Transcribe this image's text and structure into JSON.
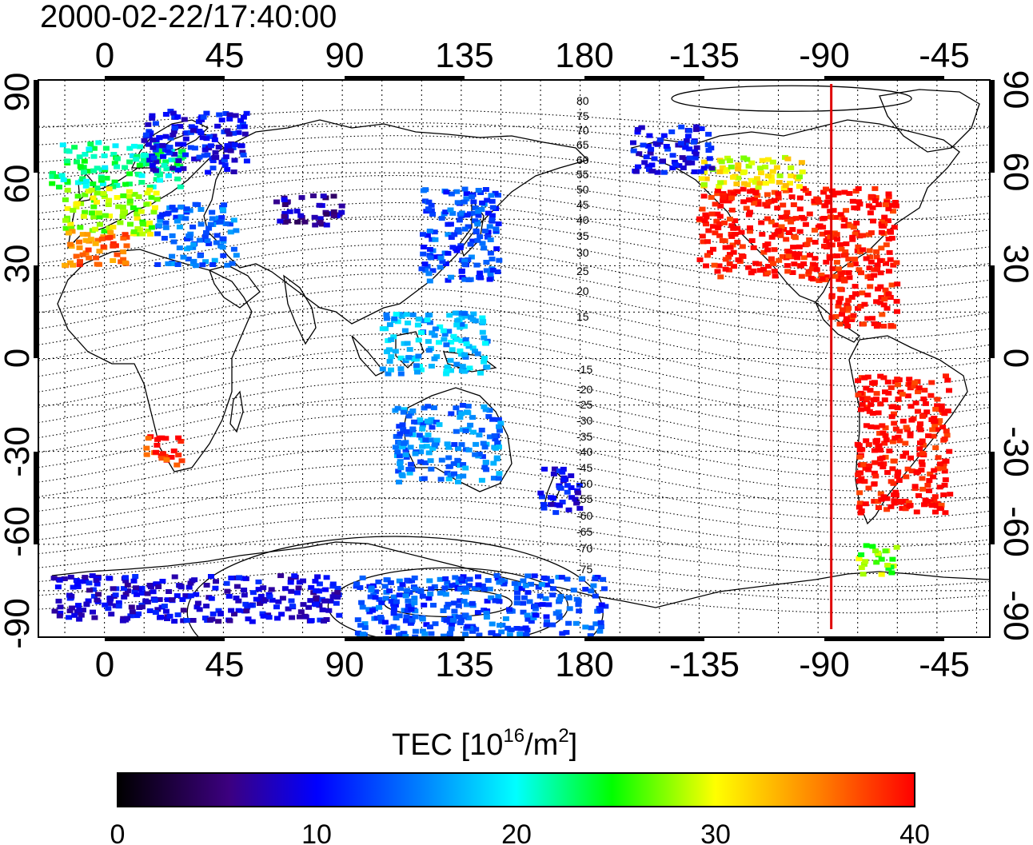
{
  "title": "2000-02-22/17:40:00",
  "top_lon_ticks": [
    "0",
    "45",
    "90",
    "135",
    "180",
    "-135",
    "-90",
    "-45"
  ],
  "bottom_lon_ticks": [
    "0",
    "45",
    "90",
    "135",
    "180",
    "-135",
    "-90",
    "-45"
  ],
  "left_lat_ticks": [
    "90",
    "60",
    "30",
    "0",
    "-30",
    "-60",
    "-90"
  ],
  "right_lat_ticks": [
    "90",
    "60",
    "30",
    "0",
    "-30",
    "-60",
    "-90"
  ],
  "contour_labels": [
    "80",
    "75",
    "70",
    "65",
    "60",
    "55",
    "50",
    "45",
    "40",
    "35",
    "30",
    "25",
    "20",
    "15",
    "-15",
    "-20",
    "-25",
    "-30",
    "-35",
    "-40",
    "-45",
    "-50",
    "-55",
    "-60",
    "-65",
    "-70",
    "-75"
  ],
  "colorbar": {
    "label_main": "TEC  [10",
    "label_sup1": "16",
    "label_mid": "/m",
    "label_sup2": "2",
    "label_end": "]",
    "ticks": [
      "0",
      "10",
      "20",
      "30",
      "40"
    ],
    "min": 0,
    "max": 40,
    "colors": [
      "#000000",
      "#3c0080",
      "#0000ff",
      "#00ffff",
      "#00ff00",
      "#ffff00",
      "#ff0000"
    ]
  },
  "chart_data": {
    "type": "heatmap",
    "title": "2000-02-22/17:40:00",
    "xlabel": "",
    "ylabel": "",
    "xlim": [
      -25,
      335
    ],
    "ylim": [
      -90,
      90
    ],
    "value_range": [
      0,
      40
    ],
    "terminator_longitude": -85,
    "patches": [
      {
        "lon": [
          -20,
          30
        ],
        "lat": [
          55,
          70
        ],
        "tec": 22
      },
      {
        "lon": [
          -15,
          20
        ],
        "lat": [
          40,
          55
        ],
        "tec": 28
      },
      {
        "lon": [
          -15,
          10
        ],
        "lat": [
          30,
          42
        ],
        "tec": 36
      },
      {
        "lon": [
          15,
          55
        ],
        "lat": [
          60,
          80
        ],
        "tec": 10
      },
      {
        "lon": [
          20,
          50
        ],
        "lat": [
          30,
          50
        ],
        "tec": 14
      },
      {
        "lon": [
          65,
          90
        ],
        "lat": [
          43,
          53
        ],
        "tec": 7
      },
      {
        "lon": [
          120,
          150
        ],
        "lat": [
          25,
          55
        ],
        "tec": 13
      },
      {
        "lon": [
          105,
          145
        ],
        "lat": [
          -5,
          15
        ],
        "tec": 17
      },
      {
        "lon": [
          -135,
          -60
        ],
        "lat": [
          25,
          55
        ],
        "tec": 40
      },
      {
        "lon": [
          -135,
          -95
        ],
        "lat": [
          55,
          65
        ],
        "tec": 30
      },
      {
        "lon": [
          -160,
          -130
        ],
        "lat": [
          60,
          75
        ],
        "tec": 10
      },
      {
        "lon": [
          -85,
          -60
        ],
        "lat": [
          10,
          25
        ],
        "tec": 40
      },
      {
        "lon": [
          -75,
          -40
        ],
        "lat": [
          -50,
          -5
        ],
        "tec": 40
      },
      {
        "lon": [
          -75,
          -60
        ],
        "lat": [
          -70,
          -60
        ],
        "tec": 27
      },
      {
        "lon": [
          110,
          150
        ],
        "lat": [
          -40,
          -15
        ],
        "tec": 15
      },
      {
        "lon": [
          165,
          180
        ],
        "lat": [
          -50,
          -35
        ],
        "tec": 10
      },
      {
        "lon": [
          15,
          30
        ],
        "lat": [
          -35,
          -25
        ],
        "tec": 38
      },
      {
        "lon": [
          -20,
          90
        ],
        "lat": [
          -85,
          -70
        ],
        "tec": 9
      },
      {
        "lon": [
          95,
          190
        ],
        "lat": [
          -90,
          -70
        ],
        "tec": 13
      }
    ]
  }
}
